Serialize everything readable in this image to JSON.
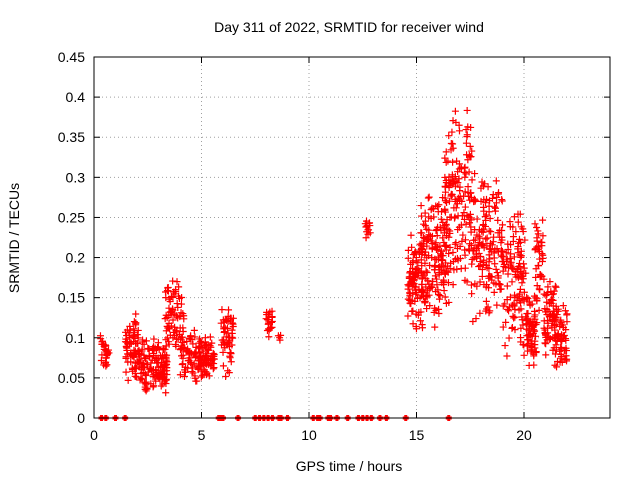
{
  "chart_data": {
    "type": "scatter",
    "title": "Day 311 of 2022, SRMTID for receiver wind",
    "xlabel": "GPS time / hours",
    "ylabel": "SRMTID / TECUs",
    "xlim": [
      0,
      24
    ],
    "ylim": [
      0,
      0.45
    ],
    "xticks": [
      0,
      5,
      10,
      15,
      20
    ],
    "xtick_labels": [
      "0",
      "5",
      "10",
      "15",
      "20"
    ],
    "yticks": [
      0,
      0.05,
      0.1,
      0.15,
      0.2,
      0.25,
      0.3,
      0.35,
      0.4,
      0.45
    ],
    "ytick_labels": [
      "0",
      "0.05",
      "0.1",
      "0.15",
      "0.2",
      "0.25",
      "0.3",
      "0.35",
      "0.4",
      "0.45"
    ],
    "grid": true,
    "marker": "+",
    "color": "#ff0000",
    "series": [
      {
        "name": "SRMTID",
        "clusters": [
          {
            "x": [
              0.3,
              0.7
            ],
            "y": [
              0.055,
              0.105
            ],
            "n": 30
          },
          {
            "x": [
              1.45,
              2.1
            ],
            "y": [
              0.04,
              0.135
            ],
            "n": 80
          },
          {
            "x": [
              2.1,
              3.4
            ],
            "y": [
              0.025,
              0.1
            ],
            "n": 150
          },
          {
            "x": [
              3.3,
              4.2
            ],
            "y": [
              0.07,
              0.18
            ],
            "n": 70
          },
          {
            "x": [
              4.0,
              5.6
            ],
            "y": [
              0.04,
              0.11
            ],
            "n": 150
          },
          {
            "x": [
              5.9,
              6.5
            ],
            "y": [
              0.04,
              0.17
            ],
            "n": 55
          },
          {
            "x": [
              8.0,
              8.3
            ],
            "y": [
              0.09,
              0.14
            ],
            "n": 22
          },
          {
            "x": [
              8.5,
              8.7
            ],
            "y": [
              0.09,
              0.11
            ],
            "n": 4
          },
          {
            "x": [
              12.6,
              12.85
            ],
            "y": [
              0.21,
              0.26
            ],
            "n": 14
          },
          {
            "x": [
              14.6,
              15.3
            ],
            "y": [
              0.1,
              0.23
            ],
            "n": 90
          },
          {
            "x": [
              15.2,
              16.3
            ],
            "y": [
              0.1,
              0.29
            ],
            "n": 150
          },
          {
            "x": [
              16.3,
              17.6
            ],
            "y": [
              0.13,
              0.4
            ],
            "n": 180
          },
          {
            "x": [
              17.6,
              19.0
            ],
            "y": [
              0.12,
              0.31
            ],
            "n": 150
          },
          {
            "x": [
              19.0,
              20.1
            ],
            "y": [
              0.07,
              0.28
            ],
            "n": 120
          },
          {
            "x": [
              20.1,
              20.6
            ],
            "y": [
              0.06,
              0.16
            ],
            "n": 70
          },
          {
            "x": [
              20.5,
              20.9
            ],
            "y": [
              0.13,
              0.25
            ],
            "n": 40
          },
          {
            "x": [
              20.9,
              21.5
            ],
            "y": [
              0.06,
              0.18
            ],
            "n": 70
          },
          {
            "x": [
              21.4,
              22.0
            ],
            "y": [
              0.05,
              0.15
            ],
            "n": 60
          }
        ],
        "zero_x": [
          0.35,
          0.55,
          1.0,
          1.45,
          5.8,
          5.9,
          6.0,
          6.7,
          7.5,
          7.7,
          7.9,
          8.1,
          8.3,
          8.6,
          8.7,
          9.0,
          10.2,
          10.4,
          10.5,
          10.9,
          11.0,
          11.3,
          11.8,
          12.3,
          12.5,
          12.7,
          12.9,
          13.3,
          13.6,
          14.5,
          16.5
        ]
      }
    ]
  }
}
